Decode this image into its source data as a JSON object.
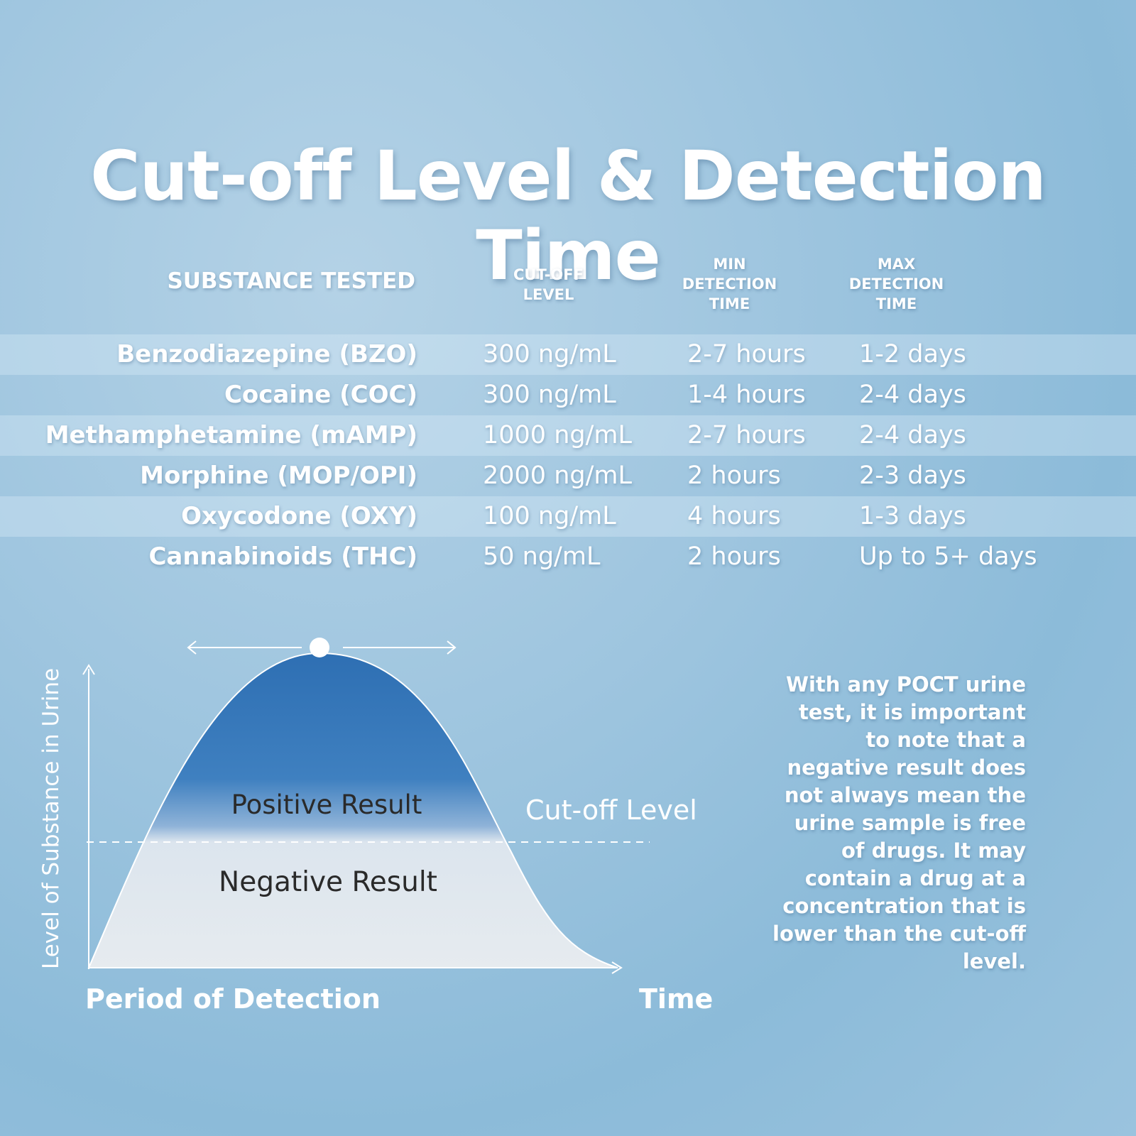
{
  "title": "Cut-off Level & Detection Time",
  "table": {
    "headers": {
      "substance": "SUBSTANCE TESTED",
      "cutoff": [
        "CUT-OFF",
        "LEVEL"
      ],
      "min": [
        "MIN",
        "DETECTION",
        "TIME"
      ],
      "max": [
        "MAX",
        "DETECTION",
        "TIME"
      ]
    },
    "rows": [
      {
        "substance": "Benzodiazepine (BZO)",
        "cutoff": "300 ng/mL",
        "min": "2-7 hours",
        "max": "1-2 days"
      },
      {
        "substance": "Cocaine (COC)",
        "cutoff": "300 ng/mL",
        "min": "1-4 hours",
        "max": "2-4 days"
      },
      {
        "substance": "Methamphetamine (mAMP)",
        "cutoff": "1000 ng/mL",
        "min": "2-7 hours",
        "max": "2-4 days"
      },
      {
        "substance": "Morphine (MOP/OPI)",
        "cutoff": "2000 ng/mL",
        "min": "2 hours",
        "max": "2-3 days"
      },
      {
        "substance": "Oxycodone (OXY)",
        "cutoff": "100 ng/mL",
        "min": "4 hours",
        "max": "1-3 days"
      },
      {
        "substance": "Cannabinoids (THC)",
        "cutoff": "50 ng/mL",
        "min": "2 hours",
        "max": "Up to 5+ days"
      }
    ]
  },
  "diagram": {
    "y_axis_label": "Level of Substance in Urine",
    "x_axis_label_left": "Period of Detection",
    "x_axis_label_right": "Time",
    "positive_label": "Positive Result",
    "negative_label": "Negative Result",
    "cutoff_label": "Cut-off Level",
    "colors": {
      "positive": "#2e6fb3",
      "negative": "#e3e9ee",
      "line": "#ffffff",
      "label_dark": "#2a2a2a"
    }
  },
  "note": "With any POCT urine test, it is important to note that a negative result does not always mean the urine sample is free of drugs. It may contain a drug at a concentration that is lower than the cut-off level."
}
